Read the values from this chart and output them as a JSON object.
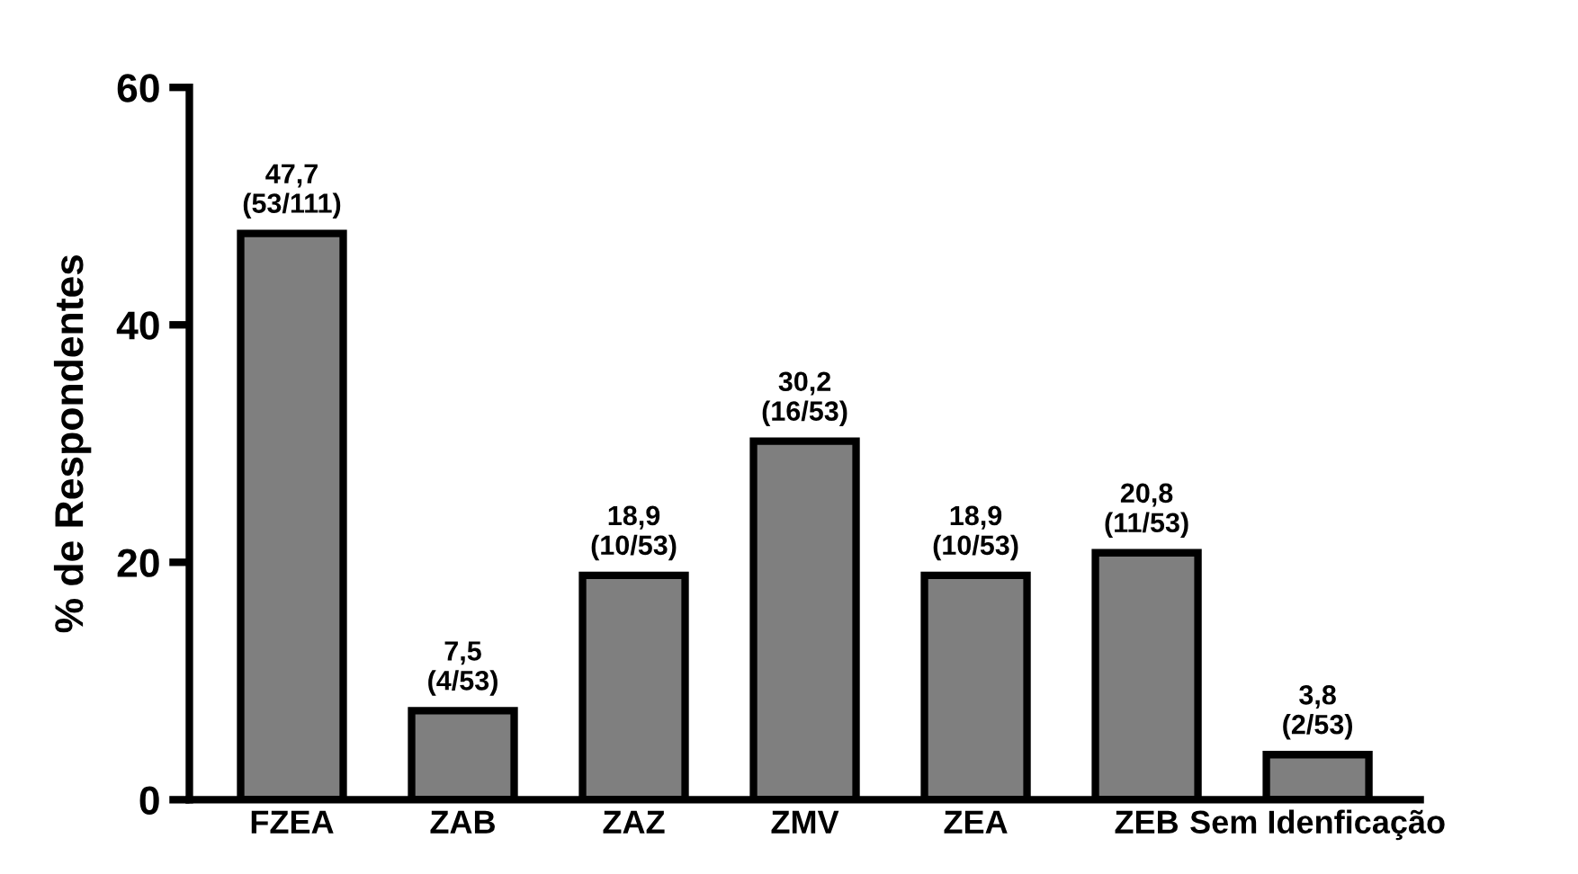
{
  "chart_data": {
    "type": "bar",
    "ylabel": "% de Respondentes",
    "categories": [
      "FZEA",
      "ZAB",
      "ZAZ",
      "ZMV",
      "ZEA",
      "ZEB",
      "Sem Idenficação"
    ],
    "values": [
      47.7,
      7.5,
      18.9,
      30.2,
      18.9,
      20.8,
      3.8
    ],
    "value_labels": [
      "47,7\n(53/111)",
      "7,5\n(4/53)",
      "18,9\n(10/53)",
      "30,2\n(16/53)",
      "18,9\n(10/53)",
      "20,8\n(11/53)",
      "3,8\n(2/53)"
    ],
    "color": "#7f7f7f",
    "ylim": [
      0,
      60
    ],
    "yticks": [
      0,
      20,
      40,
      60
    ],
    "grid": false
  }
}
